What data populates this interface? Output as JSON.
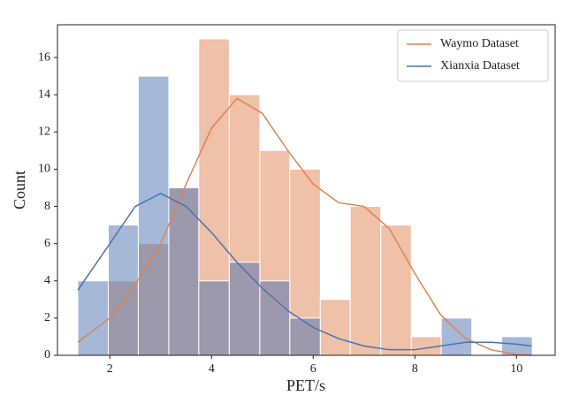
{
  "chart_data": {
    "type": "histogram",
    "xlabel": "PET/s",
    "ylabel": "Count",
    "bins": [
      1.37,
      1.97,
      2.56,
      3.16,
      3.75,
      4.35,
      4.95,
      5.54,
      6.14,
      6.73,
      7.33,
      7.93,
      8.52,
      9.12,
      9.71,
      10.31
    ],
    "series": [
      {
        "name": "Waymo Dataset",
        "color": "#dd8452",
        "values": [
          0,
          4,
          6,
          9,
          17,
          14,
          11,
          10,
          3,
          8,
          7,
          1,
          0,
          0,
          0
        ],
        "kde": {
          "x": [
            1.37,
            2,
            2.5,
            3,
            3.5,
            4,
            4.5,
            5,
            5.5,
            6,
            6.5,
            7,
            7.5,
            8,
            8.5,
            9,
            9.5,
            10,
            10.3
          ],
          "y": [
            0.7,
            2.0,
            3.8,
            6.0,
            9.2,
            12.2,
            13.8,
            13.0,
            11.0,
            9.2,
            8.2,
            8.0,
            6.8,
            4.4,
            2.2,
            0.9,
            0.3,
            0.05,
            0
          ]
        }
      },
      {
        "name": "Xianxia Dataset",
        "color": "#4c72b0",
        "values": [
          4,
          7,
          15,
          9,
          4,
          5,
          4,
          2,
          0,
          0,
          0,
          0,
          2,
          0,
          1
        ],
        "kde": {
          "x": [
            1.37,
            2,
            2.5,
            3,
            3.5,
            4,
            4.5,
            5,
            5.5,
            6,
            6.5,
            7,
            7.5,
            8,
            8.5,
            9,
            9.5,
            10,
            10.3
          ],
          "y": [
            3.5,
            6.0,
            8.0,
            8.7,
            8.0,
            6.6,
            5.0,
            3.6,
            2.4,
            1.5,
            0.9,
            0.5,
            0.3,
            0.3,
            0.5,
            0.7,
            0.7,
            0.6,
            0.5
          ]
        }
      }
    ],
    "xlim": [
      0.97,
      10.76
    ],
    "ylim": [
      0,
      17.76
    ],
    "xticks": [
      2,
      4,
      6,
      8,
      10
    ],
    "yticks": [
      0,
      2,
      4,
      6,
      8,
      10,
      12,
      14,
      16
    ],
    "legend": "upper right",
    "grid": false
  }
}
